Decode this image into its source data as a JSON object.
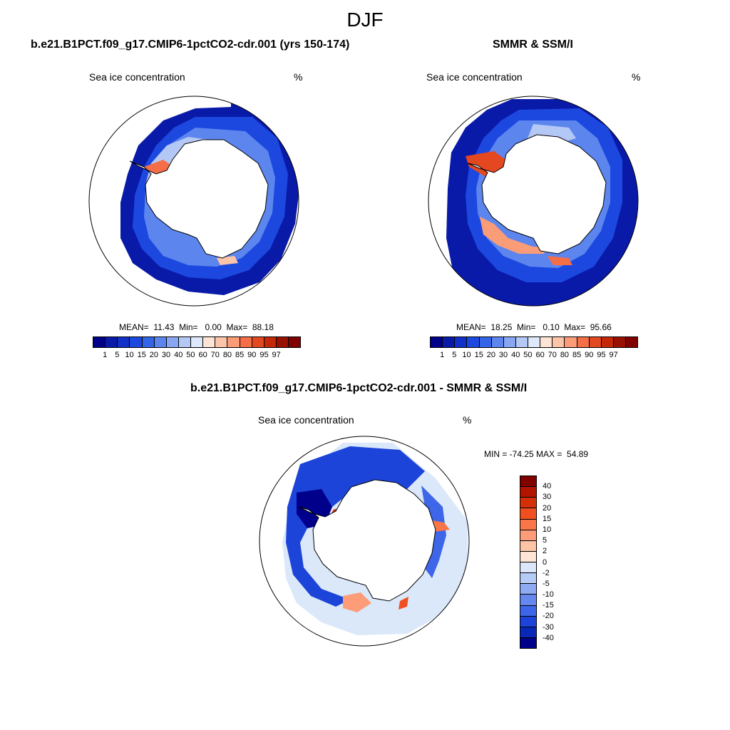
{
  "figure": {
    "title": "DJF",
    "panels": [
      {
        "title": "b.e21.B1PCT.f09_g17.CMIP6-1pctCO2-cdr.001 (yrs 150-174)",
        "variable": "Sea ice concentration",
        "units": "%",
        "stats": "MEAN=  11.43  Min=   0.00  Max=  88.18"
      },
      {
        "title": "SMMR & SSM/I",
        "variable": "Sea ice concentration",
        "units": "%",
        "stats": "MEAN=  18.25  Min=   0.10  Max=  95.66"
      },
      {
        "title": "b.e21.B1PCT.f09_g17.CMIP6-1pctCO2-cdr.001 - SMMR & SSM/I",
        "variable": "Sea ice concentration",
        "units": "%",
        "stats": "MIN = -74.25 MAX =  54.89"
      }
    ],
    "abs_colorbar": {
      "labels": [
        "1",
        "5",
        "10",
        "15",
        "20",
        "30",
        "40",
        "50",
        "60",
        "70",
        "80",
        "85",
        "90",
        "95",
        "97"
      ],
      "colors": [
        "#00008b",
        "#0a1aa8",
        "#1030c8",
        "#1c48e0",
        "#3464e8",
        "#5c86ee",
        "#88a6f2",
        "#b4c8f6",
        "#dde8fa",
        "#fde4d4",
        "#fcc4a8",
        "#fa9c78",
        "#f46e48",
        "#e44820",
        "#c42808",
        "#9a1000",
        "#800000"
      ]
    },
    "diff_colorbar": {
      "labels": [
        "40",
        "30",
        "20",
        "15",
        "10",
        "5",
        "2",
        "0",
        "-2",
        "-5",
        "-10",
        "-15",
        "-20",
        "-30",
        "-40"
      ],
      "colors": [
        "#800000",
        "#b21400",
        "#d43008",
        "#f05020",
        "#fa7648",
        "#fc9c78",
        "#fdc4a6",
        "#fde6d6",
        "#dae8fa",
        "#b6ccf6",
        "#8eaaf2",
        "#6688ee",
        "#3e66e8",
        "#1c44d8",
        "#0a28b8",
        "#00008b"
      ]
    }
  }
}
